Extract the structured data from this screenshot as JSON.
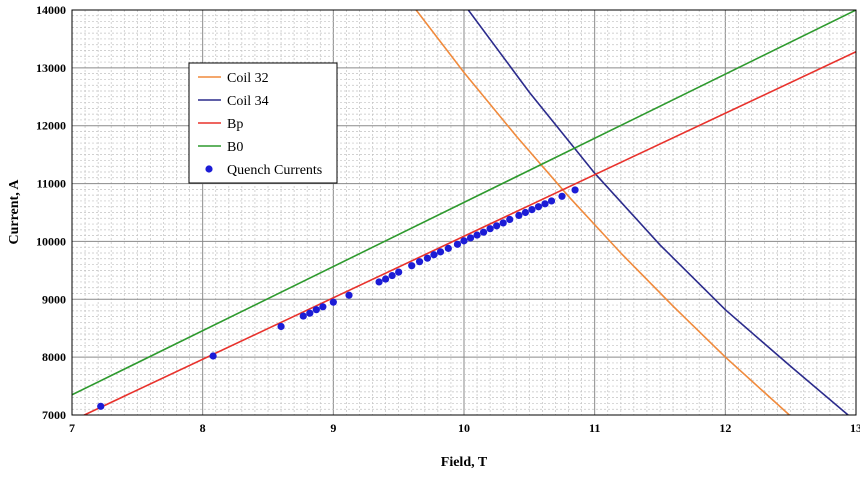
{
  "chart_data": {
    "type": "scatter",
    "xlabel": "Field, T",
    "ylabel": "Current, A",
    "xlim": [
      7,
      13
    ],
    "ylim": [
      7000,
      14000
    ],
    "x_ticks": [
      "7",
      "8",
      "9",
      "10",
      "11",
      "12",
      "13"
    ],
    "y_ticks": [
      "7000",
      "8000",
      "9000",
      "10000",
      "11000",
      "12000",
      "13000",
      "14000"
    ],
    "grid": "major solid, minor dashed",
    "legend_position": "top-left (inside)",
    "series": [
      {
        "name": "Coil 32",
        "kind": "line",
        "color": "#f08a3c",
        "x": [
          9.6,
          10.0,
          10.4,
          10.8,
          11.2,
          11.6,
          12.0,
          12.5
        ],
        "y": [
          14100,
          12920,
          11820,
          10780,
          9800,
          8880,
          8000,
          6980
        ]
      },
      {
        "name": "Coil 34",
        "kind": "line",
        "color": "#2b2b8c",
        "x": [
          10.0,
          10.5,
          11.0,
          11.5,
          12.0,
          12.5,
          12.95
        ],
        "y": [
          14100,
          12580,
          11180,
          9940,
          8820,
          7840,
          6980
        ]
      },
      {
        "name": "Bp",
        "kind": "line",
        "color": "#e8322c",
        "x": [
          7.0,
          13.0
        ],
        "y": [
          6900,
          13280
        ]
      },
      {
        "name": "B0",
        "kind": "line",
        "color": "#2e9a2e",
        "x": [
          7.0,
          13.0
        ],
        "y": [
          7350,
          14000
        ]
      },
      {
        "name": "Quench Currents",
        "kind": "points",
        "color": "#1c1cd6",
        "x": [
          7.22,
          8.08,
          8.6,
          8.77,
          8.82,
          8.87,
          8.92,
          9.0,
          9.12,
          9.35,
          9.4,
          9.45,
          9.5,
          9.6,
          9.66,
          9.72,
          9.77,
          9.82,
          9.88,
          9.95,
          10.0,
          10.05,
          10.1,
          10.15,
          10.2,
          10.25,
          10.3,
          10.35,
          10.42,
          10.47,
          10.52,
          10.57,
          10.62,
          10.67,
          10.75,
          10.85
        ],
        "y": [
          7150,
          8020,
          8530,
          8710,
          8760,
          8820,
          8870,
          8950,
          9070,
          9300,
          9350,
          9410,
          9470,
          9580,
          9650,
          9710,
          9770,
          9820,
          9880,
          9950,
          10010,
          10060,
          10110,
          10160,
          10220,
          10270,
          10320,
          10380,
          10450,
          10500,
          10550,
          10600,
          10650,
          10700,
          10780,
          10890
        ]
      }
    ]
  }
}
